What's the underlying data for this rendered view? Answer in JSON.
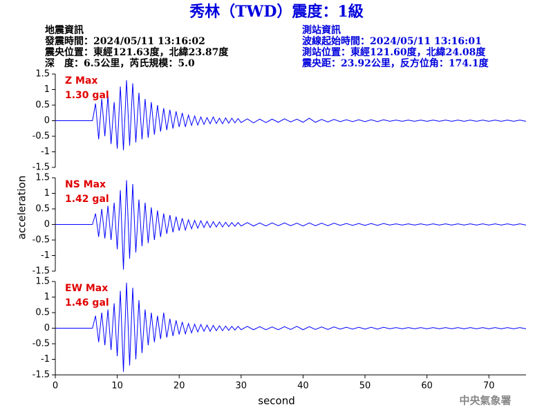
{
  "title": "秀林（TWD）震度：1級",
  "event_info": [
    "地震資訊",
    "發震時間：2024/05/11 13:16:02",
    "震央位置：東經121.63度，北緯23.87度",
    "深　度：6.5公里，芮氏規模：5.0"
  ],
  "station_info": [
    "測站資訊",
    "波線起始時間：2024/05/11 13:16:01",
    "測站位置：東經121.60度，北緯24.08度",
    "震央距：23.92公里，反方位角：174.1度"
  ],
  "y_label": "acceleration",
  "x_label": "second",
  "footer": "中央氣象署",
  "chart_data": [
    {
      "type": "line",
      "annotation": [
        "Z Max",
        "1.30 gal"
      ],
      "xlim": [
        0,
        76
      ],
      "ylim": [
        -1.5,
        1.5
      ],
      "yticks": [
        -1.5,
        -1,
        -0.5,
        0,
        0.5,
        1,
        1.5
      ],
      "x": [
        0,
        6,
        6.5,
        7,
        7.5,
        8,
        8.5,
        9,
        9.5,
        10,
        10.5,
        11,
        11.5,
        12,
        12.5,
        13,
        13.5,
        14,
        14.5,
        15,
        15.5,
        16,
        16.5,
        17,
        17.5,
        18,
        18.5,
        19,
        19.5,
        20,
        20.5,
        21,
        21.5,
        22,
        22.5,
        23,
        23.5,
        24,
        24.5,
        25,
        25.5,
        26,
        26.5,
        27,
        27.5,
        28,
        28.5,
        29,
        29.5,
        30,
        31,
        32,
        33,
        34,
        35,
        36,
        37,
        38,
        39,
        40,
        41,
        42,
        43,
        44,
        45,
        46,
        47,
        48,
        49,
        50,
        51,
        52,
        53,
        54,
        55,
        56,
        57,
        58,
        59,
        60,
        61,
        62,
        63,
        64,
        65,
        66,
        67,
        68,
        69,
        70,
        71,
        72,
        73,
        74,
        75,
        76
      ],
      "series": [
        {
          "color": "#0000ff",
          "values": [
            0,
            0,
            0.55,
            -0.6,
            0.7,
            -0.5,
            0.8,
            -0.75,
            0.6,
            -0.9,
            1.1,
            -0.95,
            1.3,
            -0.8,
            1.2,
            -0.7,
            0.9,
            -0.6,
            0.7,
            -0.55,
            0.6,
            -0.45,
            0.5,
            -0.35,
            0.4,
            -0.3,
            0.35,
            -0.25,
            0.3,
            -0.2,
            0.25,
            -0.2,
            0.18,
            -0.15,
            0.15,
            -0.14,
            0.12,
            -0.12,
            0.1,
            -0.1,
            0.12,
            -0.09,
            0.08,
            -0.1,
            0.09,
            -0.08,
            0.08,
            -0.07,
            0.07,
            -0.06,
            0.06,
            -0.07,
            0.05,
            -0.06,
            0.05,
            -0.05,
            0.06,
            -0.04,
            0.05,
            -0.05,
            0.08,
            -0.05,
            0.04,
            -0.04,
            0.04,
            -0.03,
            0.03,
            -0.03,
            0.03,
            -0.03,
            0.03,
            -0.03,
            0.03,
            -0.02,
            0.02,
            -0.02,
            0.02,
            -0.02,
            0.02,
            -0.02,
            0.02,
            -0.02,
            0.02,
            -0.02,
            0.02,
            -0.02,
            0.02,
            -0.02,
            0.02,
            -0.02,
            0.02,
            -0.02,
            0.02,
            -0.02,
            0.02,
            -0.02
          ]
        }
      ]
    },
    {
      "type": "line",
      "annotation": [
        "NS Max",
        "1.42 gal"
      ],
      "xlim": [
        0,
        76
      ],
      "ylim": [
        -1.5,
        1.5
      ],
      "yticks": [
        -1.5,
        -1,
        -0.5,
        0,
        0.5,
        1,
        1.5
      ],
      "x": [
        0,
        6,
        6.5,
        7,
        7.5,
        8,
        8.5,
        9,
        9.5,
        10,
        10.5,
        11,
        11.5,
        12,
        12.5,
        13,
        13.5,
        14,
        14.5,
        15,
        15.5,
        16,
        16.5,
        17,
        17.5,
        18,
        18.5,
        19,
        19.5,
        20,
        20.5,
        21,
        21.5,
        22,
        22.5,
        23,
        23.5,
        24,
        24.5,
        25,
        25.5,
        26,
        26.5,
        27,
        27.5,
        28,
        28.5,
        29,
        29.5,
        30,
        31,
        32,
        33,
        34,
        35,
        36,
        37,
        38,
        39,
        40,
        41,
        42,
        43,
        44,
        45,
        46,
        47,
        48,
        49,
        50,
        51,
        52,
        53,
        54,
        55,
        56,
        57,
        58,
        59,
        60,
        61,
        62,
        63,
        64,
        65,
        66,
        67,
        68,
        69,
        70,
        71,
        72,
        73,
        74,
        75,
        76
      ],
      "series": [
        {
          "color": "#0000ff",
          "values": [
            0,
            0,
            0.35,
            -0.4,
            0.5,
            -0.45,
            0.6,
            -0.5,
            0.7,
            -0.8,
            1.1,
            -1.45,
            1.42,
            -1.1,
            1.3,
            -0.9,
            0.8,
            -0.7,
            0.7,
            -0.6,
            0.55,
            -0.5,
            0.45,
            -0.4,
            0.35,
            -0.3,
            0.3,
            -0.25,
            0.25,
            -0.2,
            0.2,
            -0.18,
            0.15,
            -0.14,
            0.13,
            -0.12,
            0.12,
            -0.1,
            0.1,
            -0.1,
            0.09,
            -0.08,
            0.08,
            -0.08,
            0.07,
            -0.07,
            0.06,
            -0.06,
            0.06,
            -0.05,
            0.06,
            -0.05,
            0.05,
            -0.05,
            0.05,
            -0.04,
            0.05,
            -0.04,
            0.04,
            -0.05,
            0.05,
            -0.04,
            0.04,
            -0.04,
            0.04,
            -0.03,
            0.03,
            -0.03,
            0.03,
            -0.03,
            0.03,
            -0.03,
            0.03,
            -0.02,
            0.02,
            -0.02,
            0.02,
            -0.02,
            0.02,
            -0.02,
            0.02,
            -0.02,
            0.02,
            -0.02,
            0.02,
            -0.02,
            0.02,
            -0.02,
            0.02,
            -0.02,
            0.02,
            -0.02,
            0.02,
            -0.02,
            0.02,
            -0.02
          ]
        }
      ]
    },
    {
      "type": "line",
      "annotation": [
        "EW Max",
        "1.46 gal"
      ],
      "xlim": [
        0,
        76
      ],
      "ylim": [
        -1.5,
        1.5
      ],
      "yticks": [
        -1.5,
        -1,
        -0.5,
        0,
        0.5,
        1,
        1.5
      ],
      "xticks": [
        0,
        10,
        20,
        30,
        40,
        50,
        60,
        70
      ],
      "x": [
        0,
        6,
        6.5,
        7,
        7.5,
        8,
        8.5,
        9,
        9.5,
        10,
        10.5,
        11,
        11.5,
        12,
        12.5,
        13,
        13.5,
        14,
        14.5,
        15,
        15.5,
        16,
        16.5,
        17,
        17.5,
        18,
        18.5,
        19,
        19.5,
        20,
        20.5,
        21,
        21.5,
        22,
        22.5,
        23,
        23.5,
        24,
        24.5,
        25,
        25.5,
        26,
        26.5,
        27,
        27.5,
        28,
        28.5,
        29,
        29.5,
        30,
        31,
        32,
        33,
        34,
        35,
        36,
        37,
        38,
        39,
        40,
        41,
        42,
        43,
        44,
        45,
        46,
        47,
        48,
        49,
        50,
        51,
        52,
        53,
        54,
        55,
        56,
        57,
        58,
        59,
        60,
        61,
        62,
        63,
        64,
        65,
        66,
        67,
        68,
        69,
        70,
        71,
        72,
        73,
        74,
        75,
        76
      ],
      "series": [
        {
          "color": "#0000ff",
          "values": [
            0,
            0,
            0.4,
            -0.45,
            0.5,
            -0.55,
            0.6,
            -0.7,
            0.8,
            -0.9,
            1.2,
            -1.4,
            1.46,
            -1.2,
            1.3,
            -1.0,
            0.9,
            -0.8,
            0.6,
            -0.55,
            0.5,
            -0.45,
            0.4,
            -0.35,
            0.5,
            -0.3,
            0.3,
            -0.25,
            0.25,
            -0.2,
            0.2,
            -0.18,
            0.15,
            -0.15,
            0.13,
            -0.12,
            0.12,
            -0.1,
            0.1,
            -0.1,
            0.09,
            -0.08,
            0.08,
            -0.08,
            0.07,
            -0.07,
            0.06,
            -0.06,
            0.06,
            -0.05,
            0.06,
            -0.05,
            0.05,
            -0.05,
            0.04,
            -0.05,
            0.05,
            -0.04,
            0.06,
            -0.05,
            0.05,
            -0.04,
            0.04,
            -0.04,
            0.04,
            -0.03,
            0.03,
            -0.03,
            0.03,
            -0.03,
            0.03,
            -0.03,
            0.03,
            -0.02,
            0.02,
            -0.02,
            0.02,
            -0.02,
            0.02,
            -0.02,
            0.02,
            -0.02,
            0.02,
            -0.02,
            0.02,
            -0.02,
            0.02,
            -0.02,
            0.02,
            -0.02,
            0.02,
            -0.02,
            0.02,
            -0.02,
            0.02,
            -0.02
          ]
        }
      ]
    }
  ]
}
